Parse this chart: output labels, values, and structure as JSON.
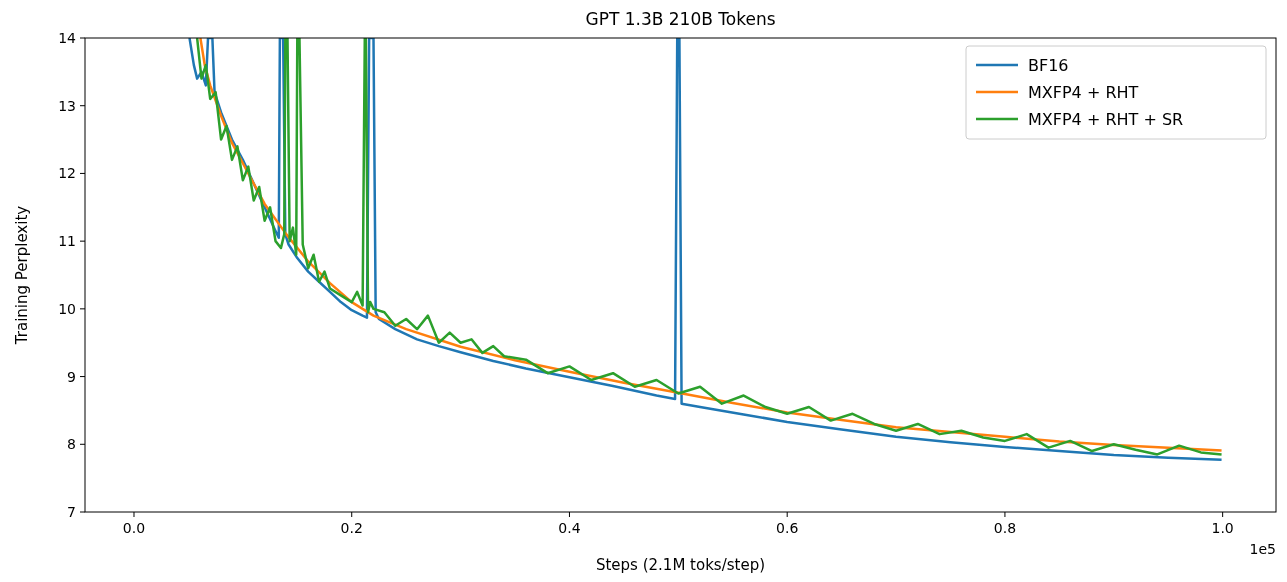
{
  "chart_data": {
    "type": "line",
    "title": "GPT 1.3B 210B Tokens",
    "xlabel": "Steps (2.1M toks/step)",
    "ylabel": "Training Perplexity",
    "annotations": [
      "1e5"
    ],
    "xlim": [
      -0.045,
      1.049
    ],
    "ylim": [
      7,
      14
    ],
    "xticks": [
      {
        "value": 0,
        "label": "0.0"
      },
      {
        "value": 0.2,
        "label": "0.2"
      },
      {
        "value": 0.4,
        "label": "0.4"
      },
      {
        "value": 0.6,
        "label": "0.6"
      },
      {
        "value": 0.8,
        "label": "0.8"
      },
      {
        "value": 1,
        "label": "1.0"
      }
    ],
    "yticks": [
      7,
      8,
      9,
      10,
      11,
      12,
      13,
      14
    ],
    "grid": false,
    "legend": "top right",
    "marker": "none",
    "line_style": "solid",
    "series": [
      {
        "name": "BF16",
        "color": "#1f77b4",
        "x": [
          0.051,
          0.055,
          0.058,
          0.062,
          0.066,
          0.068,
          0.072,
          0.074,
          0.08,
          0.09,
          0.1,
          0.11,
          0.12,
          0.13,
          0.133,
          0.134,
          0.137,
          0.139,
          0.142,
          0.15,
          0.16,
          0.17,
          0.18,
          0.19,
          0.2,
          0.21,
          0.214,
          0.216,
          0.22,
          0.222,
          0.225,
          0.24,
          0.26,
          0.28,
          0.3,
          0.33,
          0.36,
          0.4,
          0.44,
          0.48,
          0.497,
          0.499,
          0.501,
          0.503,
          0.52,
          0.56,
          0.6,
          0.65,
          0.7,
          0.75,
          0.8,
          0.85,
          0.9,
          0.95,
          0.999
        ],
        "values": [
          14,
          13.6,
          13.4,
          13.5,
          13.3,
          14,
          14,
          13.2,
          12.9,
          12.5,
          12.2,
          11.85,
          11.5,
          11.15,
          11.05,
          14,
          14,
          11.1,
          10.95,
          10.75,
          10.55,
          10.4,
          10.25,
          10.1,
          9.98,
          9.9,
          9.87,
          14,
          14,
          9.95,
          9.85,
          9.7,
          9.55,
          9.45,
          9.36,
          9.23,
          9.12,
          8.99,
          8.86,
          8.72,
          8.67,
          14,
          14,
          8.6,
          8.55,
          8.44,
          8.33,
          8.22,
          8.11,
          8.03,
          7.96,
          7.9,
          7.84,
          7.8,
          7.77
        ]
      },
      {
        "name": "MXFP4 + RHT",
        "color": "#ff7f0e",
        "x": [
          0.061,
          0.065,
          0.07,
          0.08,
          0.09,
          0.1,
          0.12,
          0.14,
          0.16,
          0.18,
          0.2,
          0.22,
          0.25,
          0.3,
          0.35,
          0.4,
          0.45,
          0.5,
          0.55,
          0.6,
          0.65,
          0.7,
          0.75,
          0.8,
          0.85,
          0.9,
          0.95,
          0.999
        ],
        "values": [
          14,
          13.6,
          13.3,
          12.85,
          12.45,
          12.15,
          11.55,
          11.1,
          10.7,
          10.38,
          10.1,
          9.9,
          9.7,
          9.44,
          9.24,
          9.07,
          8.91,
          8.76,
          8.61,
          8.47,
          8.36,
          8.25,
          8.18,
          8.11,
          8.04,
          7.99,
          7.95,
          7.91
        ]
      },
      {
        "name": "MXFP4 + RHT + SR",
        "color": "#2ca02c",
        "x": [
          0.058,
          0.062,
          0.066,
          0.07,
          0.075,
          0.08,
          0.085,
          0.09,
          0.095,
          0.1,
          0.105,
          0.11,
          0.115,
          0.12,
          0.125,
          0.13,
          0.135,
          0.138,
          0.139,
          0.141,
          0.143,
          0.146,
          0.149,
          0.15,
          0.152,
          0.155,
          0.16,
          0.165,
          0.17,
          0.175,
          0.18,
          0.19,
          0.2,
          0.205,
          0.21,
          0.212,
          0.213,
          0.215,
          0.217,
          0.22,
          0.23,
          0.24,
          0.25,
          0.26,
          0.27,
          0.28,
          0.29,
          0.3,
          0.31,
          0.32,
          0.33,
          0.34,
          0.36,
          0.38,
          0.4,
          0.42,
          0.44,
          0.46,
          0.48,
          0.5,
          0.52,
          0.54,
          0.56,
          0.58,
          0.6,
          0.62,
          0.64,
          0.66,
          0.68,
          0.7,
          0.72,
          0.74,
          0.76,
          0.78,
          0.8,
          0.82,
          0.84,
          0.86,
          0.88,
          0.9,
          0.92,
          0.94,
          0.96,
          0.98,
          0.999
        ],
        "values": [
          14,
          13.4,
          13.6,
          13.1,
          13.2,
          12.5,
          12.7,
          12.2,
          12.4,
          11.9,
          12.1,
          11.6,
          11.8,
          11.3,
          11.5,
          11.0,
          10.9,
          11.1,
          14,
          14,
          11.0,
          11.2,
          10.8,
          14,
          14,
          10.95,
          10.6,
          10.8,
          10.4,
          10.55,
          10.3,
          10.2,
          10.1,
          10.25,
          10.05,
          14,
          14,
          9.95,
          10.1,
          10.0,
          9.95,
          9.75,
          9.85,
          9.7,
          9.9,
          9.5,
          9.65,
          9.5,
          9.55,
          9.35,
          9.45,
          9.3,
          9.25,
          9.05,
          9.15,
          8.95,
          9.05,
          8.85,
          8.95,
          8.75,
          8.85,
          8.6,
          8.72,
          8.55,
          8.45,
          8.55,
          8.35,
          8.45,
          8.3,
          8.2,
          8.3,
          8.15,
          8.2,
          8.1,
          8.05,
          8.15,
          7.95,
          8.05,
          7.9,
          8.0,
          7.92,
          7.85,
          7.98,
          7.88,
          7.85
        ]
      }
    ]
  }
}
